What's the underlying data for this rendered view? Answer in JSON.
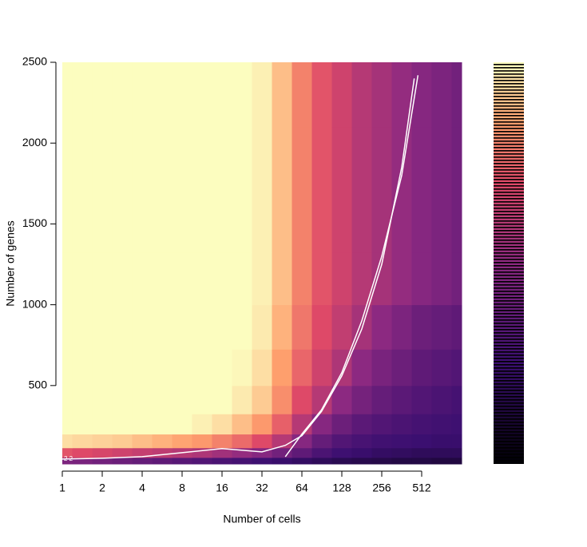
{
  "chart_data": {
    "type": "heatmap",
    "x_label": "Number of cells",
    "y_label": "Number of genes",
    "x_log_base": 2,
    "colormap": "magma",
    "xlim": [
      1,
      1024
    ],
    "ylim": [
      15,
      2500
    ],
    "xticks": [
      1,
      2,
      4,
      8,
      16,
      32,
      64,
      128,
      256,
      512
    ],
    "yticks": [
      500,
      1000,
      1500,
      2000,
      2500
    ],
    "x": [
      1,
      1.414,
      2,
      2.828,
      4,
      5.657,
      8,
      11.31,
      16,
      22.63,
      32,
      45.25,
      64,
      90.51,
      128,
      181,
      256,
      362,
      512,
      724,
      1024
    ],
    "y": [
      30,
      80,
      150,
      250,
      400,
      600,
      850,
      1150,
      1500,
      1900,
      2300
    ],
    "z": [
      [
        0.45,
        0.44,
        0.42,
        0.4,
        0.38,
        0.36,
        0.34,
        0.32,
        0.3,
        0.28,
        0.26,
        0.24,
        0.22,
        0.2,
        0.18,
        0.17,
        0.16,
        0.15,
        0.15,
        0.14,
        0.14
      ],
      [
        0.72,
        0.7,
        0.68,
        0.66,
        0.64,
        0.62,
        0.6,
        0.58,
        0.55,
        0.52,
        0.48,
        0.42,
        0.36,
        0.3,
        0.26,
        0.24,
        0.22,
        0.21,
        0.2,
        0.2,
        0.2
      ],
      [
        0.95,
        0.94,
        0.93,
        0.92,
        0.9,
        0.88,
        0.86,
        0.84,
        0.8,
        0.76,
        0.7,
        0.6,
        0.48,
        0.38,
        0.32,
        0.29,
        0.27,
        0.26,
        0.25,
        0.24,
        0.24
      ],
      [
        1,
        1,
        1,
        1,
        1,
        1,
        1,
        0.98,
        0.95,
        0.9,
        0.84,
        0.74,
        0.6,
        0.48,
        0.4,
        0.35,
        0.32,
        0.3,
        0.28,
        0.27,
        0.26
      ],
      [
        1,
        1,
        1,
        1,
        1,
        1,
        1,
        1,
        1,
        0.97,
        0.92,
        0.82,
        0.7,
        0.6,
        0.5,
        0.43,
        0.38,
        0.35,
        0.32,
        0.3,
        0.28
      ],
      [
        1,
        1,
        1,
        1,
        1,
        1,
        1,
        1,
        1,
        0.99,
        0.95,
        0.85,
        0.75,
        0.66,
        0.58,
        0.5,
        0.44,
        0.4,
        0.36,
        0.34,
        0.32
      ],
      [
        1,
        1,
        1,
        1,
        1,
        1,
        1,
        1,
        1,
        1,
        0.97,
        0.88,
        0.78,
        0.7,
        0.63,
        0.56,
        0.5,
        0.45,
        0.4,
        0.38,
        0.36
      ],
      [
        1,
        1,
        1,
        1,
        1,
        1,
        1,
        1,
        1,
        1,
        0.98,
        0.9,
        0.8,
        0.72,
        0.66,
        0.6,
        0.56,
        0.52,
        0.48,
        0.45,
        0.42
      ],
      [
        1,
        1,
        1,
        1,
        1,
        1,
        1,
        1,
        1,
        1,
        0.98,
        0.9,
        0.8,
        0.72,
        0.66,
        0.6,
        0.56,
        0.52,
        0.48,
        0.45,
        0.42
      ],
      [
        1,
        1,
        1,
        1,
        1,
        1,
        1,
        1,
        1,
        1,
        0.98,
        0.9,
        0.8,
        0.72,
        0.66,
        0.6,
        0.56,
        0.52,
        0.48,
        0.45,
        0.42
      ],
      [
        1,
        1,
        1,
        1,
        1,
        1,
        1,
        1,
        1,
        1,
        0.98,
        0.9,
        0.8,
        0.72,
        0.66,
        0.6,
        0.56,
        0.52,
        0.48,
        0.45,
        0.42
      ]
    ],
    "series": [
      {
        "color": "#ffffff",
        "x": [
          1,
          2,
          4,
          8,
          16,
          32,
          48,
          64,
          90,
          128,
          181,
          256,
          362,
          450
        ],
        "values": [
          45,
          50,
          60,
          85,
          110,
          90,
          130,
          190,
          340,
          560,
          850,
          1250,
          1850,
          2400
        ]
      },
      {
        "color": "#ffffff",
        "x": [
          48,
          64,
          90,
          128,
          181,
          256,
          362,
          480
        ],
        "values": [
          60,
          200,
          350,
          580,
          900,
          1300,
          1800,
          2420
        ]
      }
    ],
    "annotation": "2 2"
  }
}
